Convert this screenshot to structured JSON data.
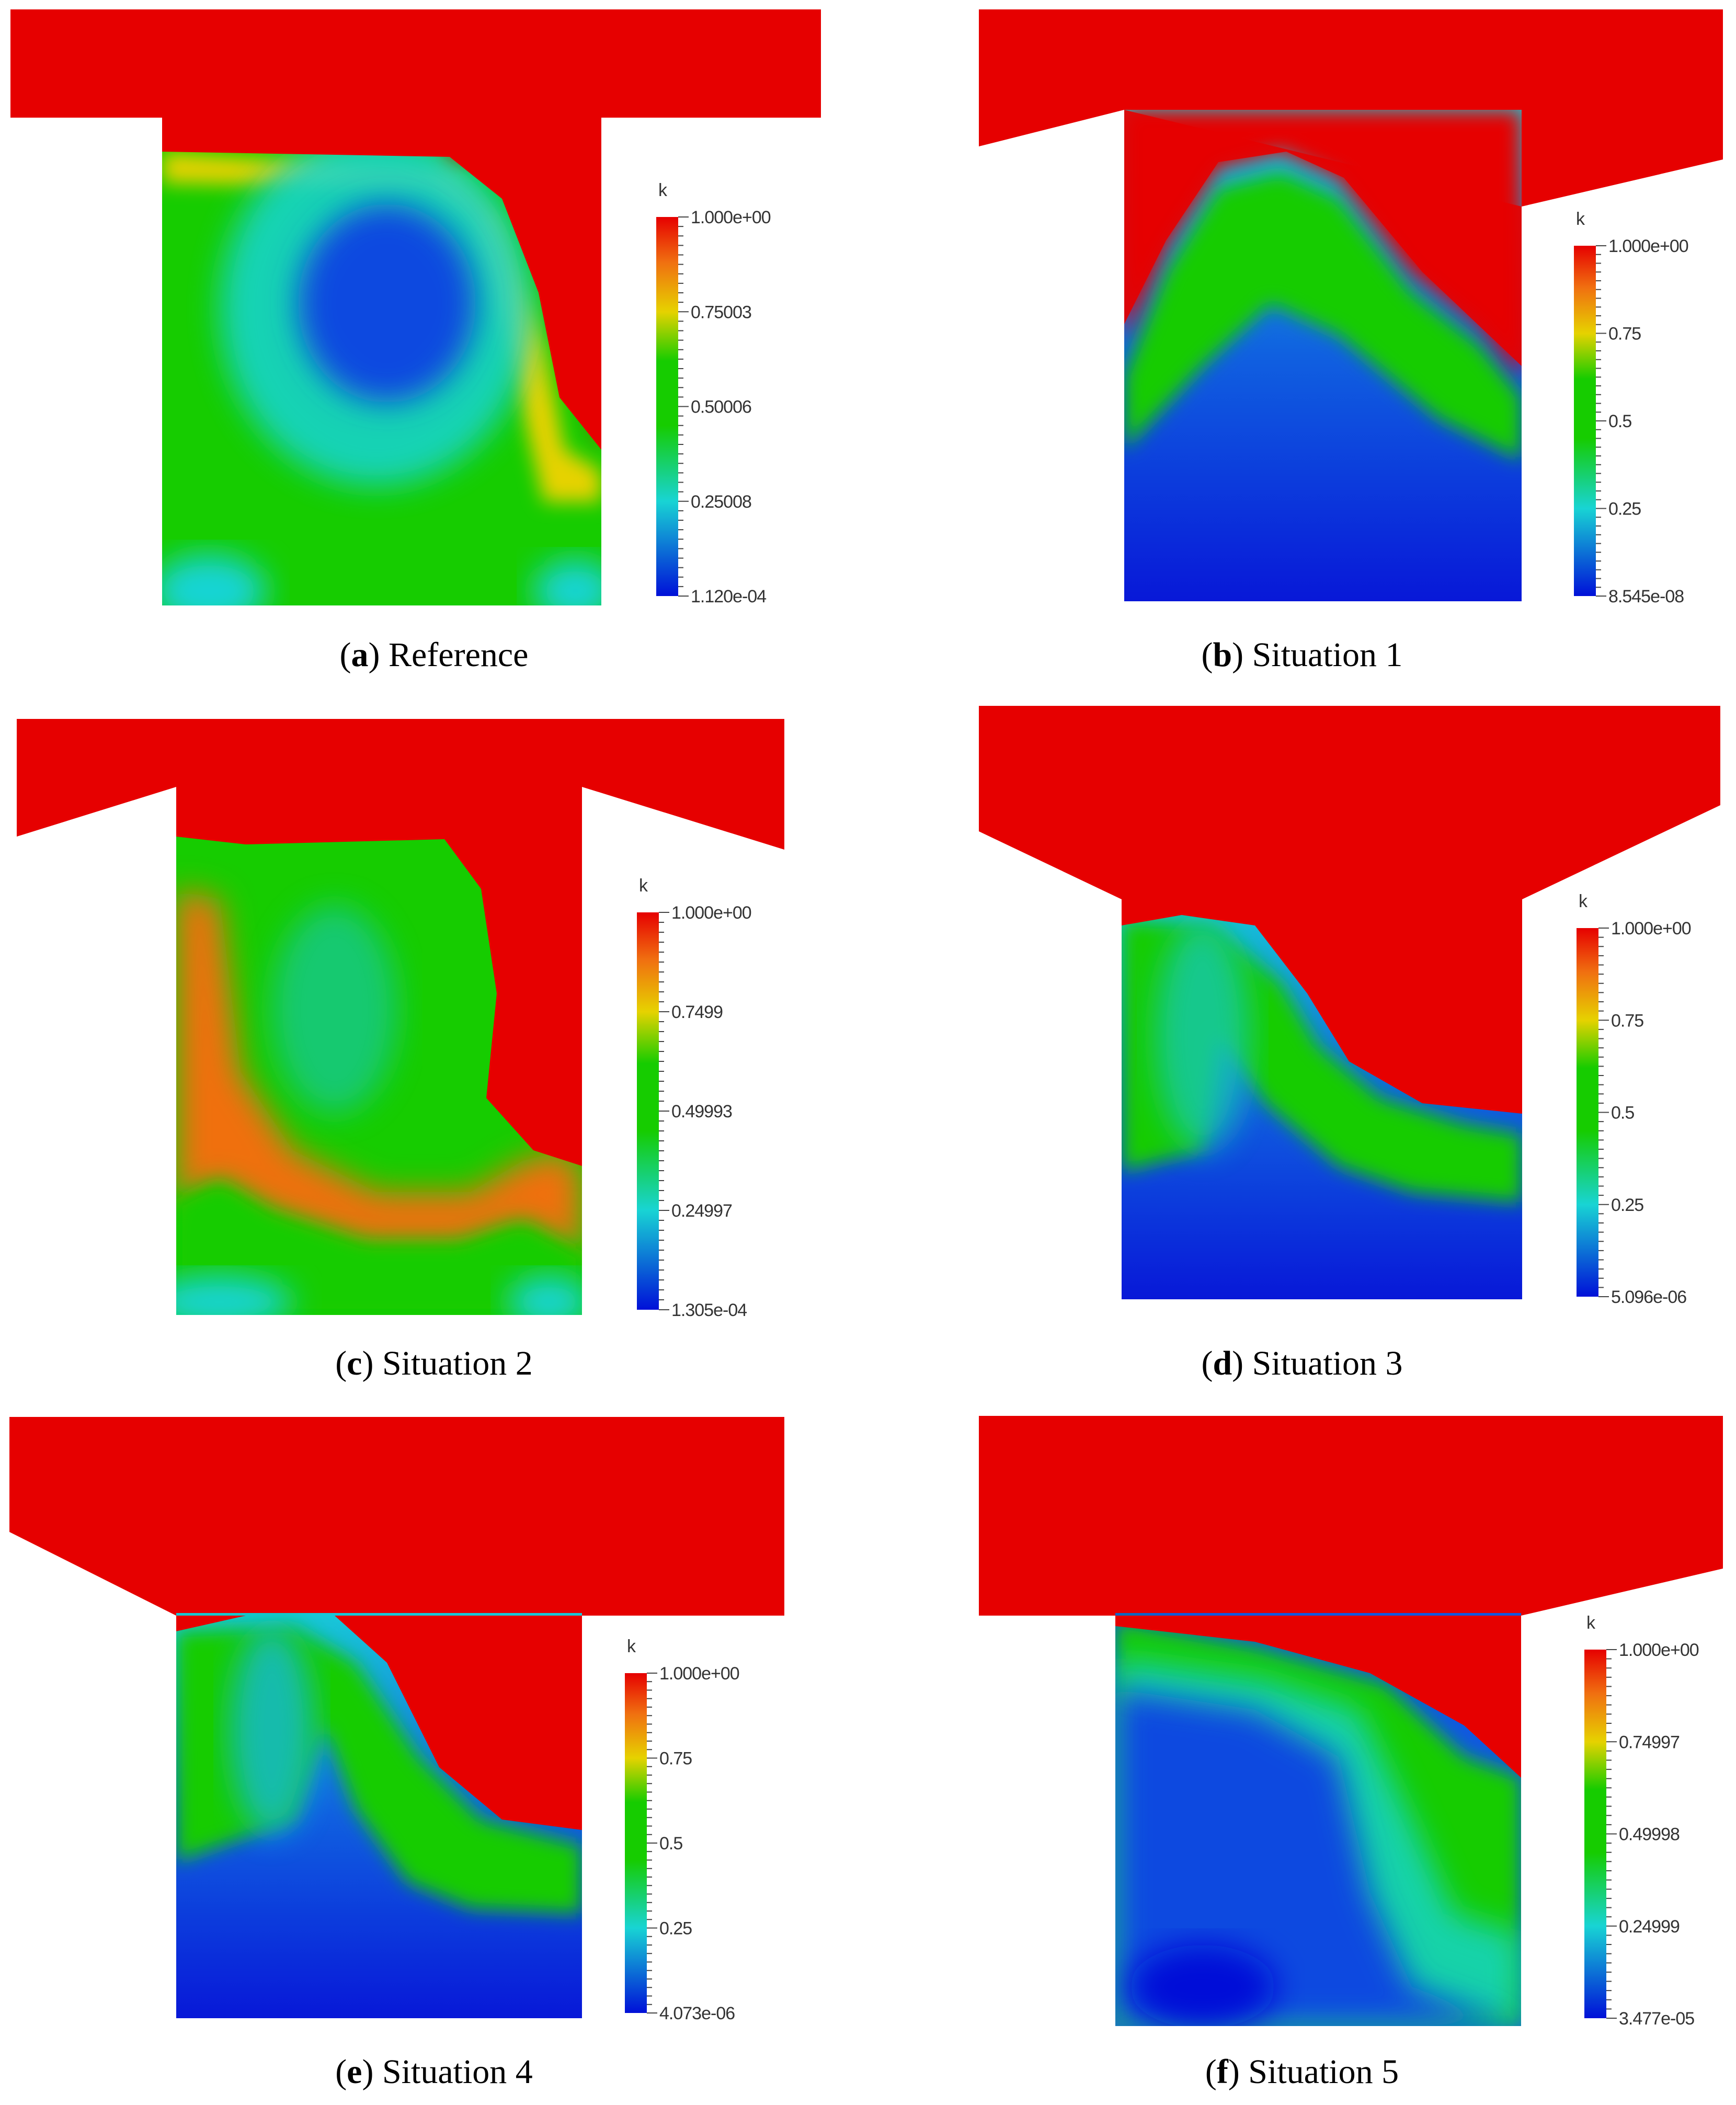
{
  "colorbar_variable": "k",
  "colors": {
    "red": "#e60000",
    "orange": "#f07010",
    "yellow": "#e6d200",
    "green": "#16cc00",
    "cyan": "#18d4d4",
    "blue": "#1030e0",
    "deep_blue": "#0010d8"
  },
  "panels": [
    {
      "letter": "a",
      "title": "Reference",
      "ticks": [
        "1.000e+00",
        "0.75003",
        "0.50006",
        "0.25008",
        "1.120e-04"
      ]
    },
    {
      "letter": "b",
      "title": "Situation 1",
      "ticks": [
        "1.000e+00",
        "0.75",
        "0.5",
        "0.25",
        "8.545e-08"
      ]
    },
    {
      "letter": "c",
      "title": "Situation 2",
      "ticks": [
        "1.000e+00",
        "0.7499",
        "0.49993",
        "0.24997",
        "1.305e-04"
      ]
    },
    {
      "letter": "d",
      "title": "Situation 3",
      "ticks": [
        "1.000e+00",
        "0.75",
        "0.5",
        "0.25",
        "5.096e-06"
      ]
    },
    {
      "letter": "e",
      "title": "Situation 4",
      "ticks": [
        "1.000e+00",
        "0.75",
        "0.5",
        "0.25",
        "4.073e-06"
      ]
    },
    {
      "letter": "f",
      "title": "Situation 5",
      "ticks": [
        "1.000e+00",
        "0.74997",
        "0.49998",
        "0.24999",
        "3.477e-05"
      ]
    }
  ]
}
